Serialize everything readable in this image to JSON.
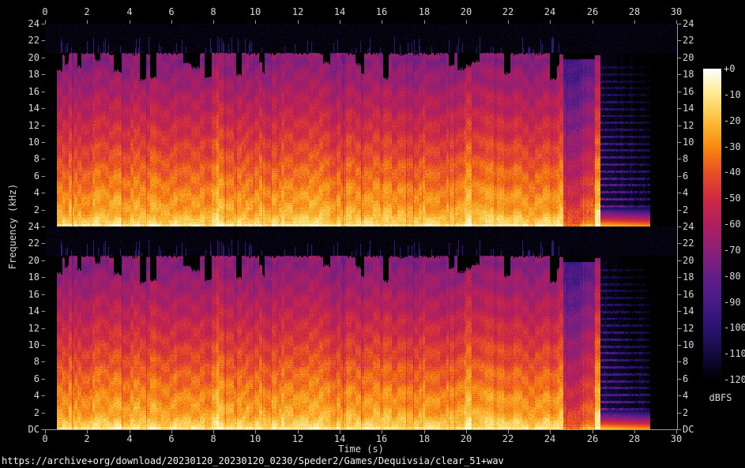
{
  "footer": {
    "url": "https://archive+org/download/20230120_20230120_0230/Speder2/Games/Dequivsia/clear_51+wav"
  },
  "chart_data": {
    "type": "heatmap",
    "subtype": "stereo-audio-spectrogram",
    "channels": 2,
    "x": {
      "label": "Time (s)",
      "min": 0,
      "max": 30.03,
      "tick_labels": [
        "0",
        "2",
        "4",
        "6",
        "8",
        "10",
        "12",
        "14",
        "16",
        "18",
        "20",
        "22",
        "24",
        "26",
        "28",
        "30"
      ]
    },
    "y": {
      "label": "Frequency (kHz)",
      "max_khz": 24,
      "tick_labels": [
        "24",
        "22",
        "20",
        "18",
        "16",
        "14",
        "12",
        "10",
        "8",
        "6",
        "4",
        "2"
      ],
      "dc_label": "DC"
    },
    "colorbar": {
      "unit": "dBFS",
      "min_db": -120,
      "max_db": 0,
      "tick_labels": [
        "+0",
        "-10",
        "-20",
        "-30",
        "-40",
        "-50",
        "-60",
        "-70",
        "-80",
        "-90",
        "-100",
        "-110",
        "-120"
      ],
      "palette": [
        [
          0.0,
          "#000000"
        ],
        [
          0.083,
          "#120a40"
        ],
        [
          0.167,
          "#2a1370"
        ],
        [
          0.25,
          "#461a86"
        ],
        [
          0.333,
          "#651d86"
        ],
        [
          0.417,
          "#8b2078"
        ],
        [
          0.5,
          "#b01e5f"
        ],
        [
          0.583,
          "#cf2a41"
        ],
        [
          0.667,
          "#e94f25"
        ],
        [
          0.75,
          "#f98a10"
        ],
        [
          0.833,
          "#fcbe38"
        ],
        [
          0.917,
          "#fde98c"
        ],
        [
          1.0,
          "#ffffff"
        ]
      ]
    },
    "audio": {
      "start_s": 0.56,
      "end_s": 28.75,
      "lowpass_cutoff_khz": 20.55
    },
    "accents_s": [
      8.3,
      20.1
    ],
    "segments": [
      {
        "t0": 0.0,
        "t1": 0.56,
        "kind": "silence",
        "gain_db": 0
      },
      {
        "t0": 0.56,
        "t1": 24.1,
        "kind": "music",
        "gain_db": 0
      },
      {
        "t0": 24.1,
        "t1": 24.62,
        "kind": "music",
        "gain_db": 2
      },
      {
        "t0": 24.62,
        "t1": 25.55,
        "kind": "quiet",
        "gain_db": -18
      },
      {
        "t0": 25.55,
        "t1": 26.1,
        "kind": "pad",
        "gain_db": -13
      },
      {
        "t0": 26.1,
        "t1": 26.38,
        "kind": "hit",
        "gain_db": 5
      },
      {
        "t0": 26.38,
        "t1": 28.75,
        "kind": "outro",
        "gain_db": 0
      },
      {
        "t0": 28.75,
        "t1": 30.03,
        "kind": "silence",
        "gain_db": 0
      }
    ]
  }
}
